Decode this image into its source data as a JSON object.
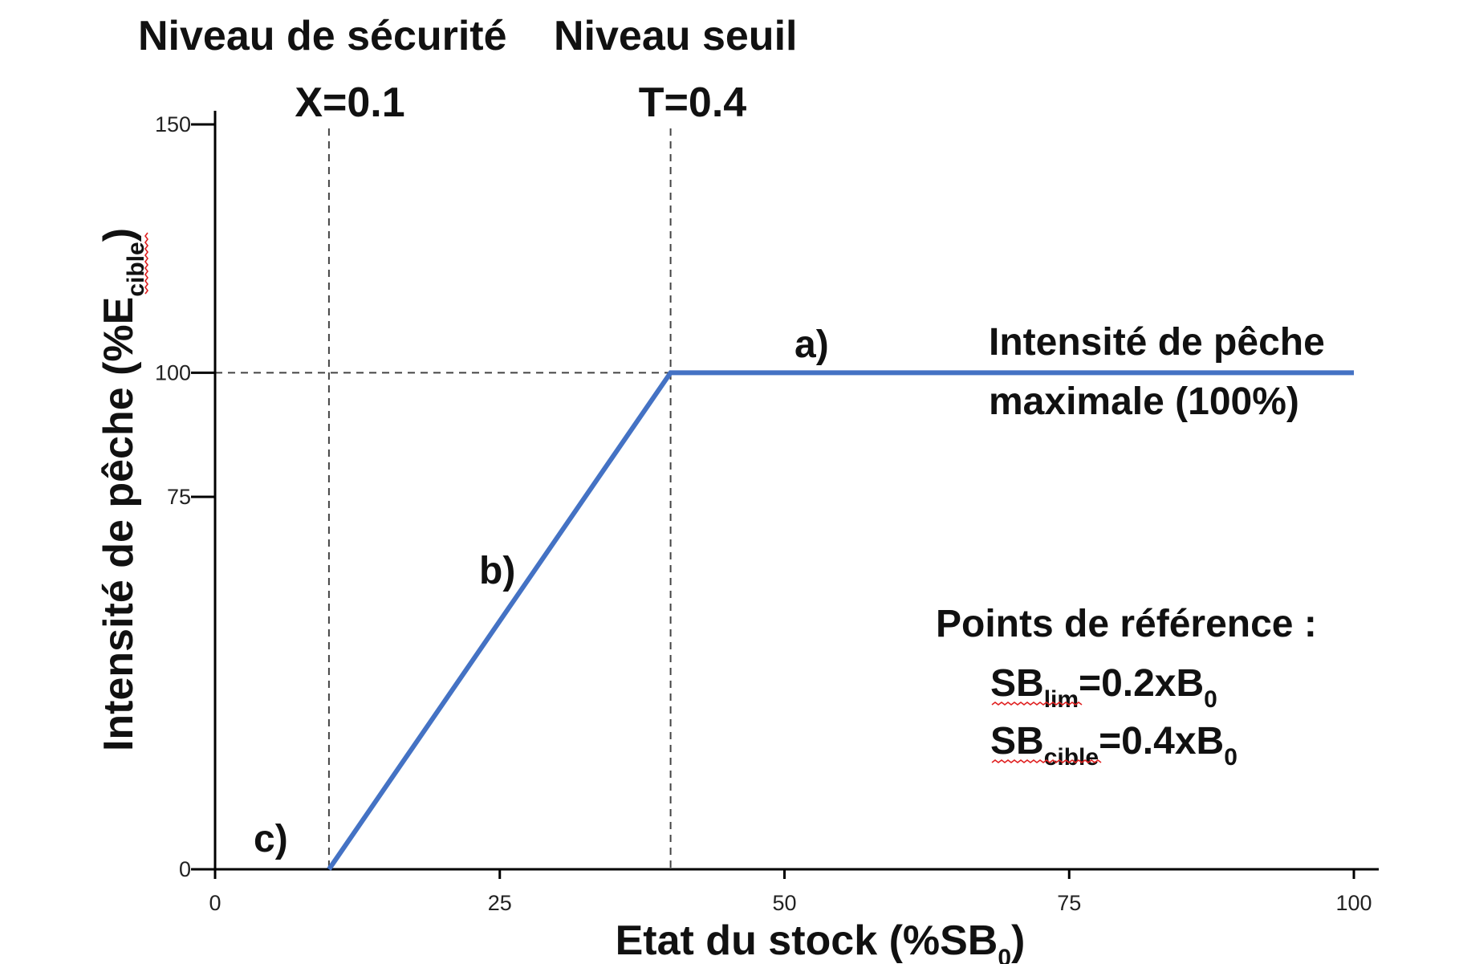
{
  "chart_data": {
    "type": "line",
    "xlabel": {
      "main": "Etat du stock (%SB",
      "sub": "0",
      "close": ")"
    },
    "ylabel": {
      "main": "Intensité de pêche (%E",
      "sub": "cible",
      "close": ")"
    },
    "xlim": [
      0,
      100
    ],
    "ylim": [
      0,
      150
    ],
    "x_ticks": [
      0,
      25,
      50,
      75,
      100
    ],
    "y_ticks": [
      0,
      75,
      100,
      150
    ],
    "series": [
      {
        "x": [
          0,
          10,
          40,
          100
        ],
        "y": [
          0,
          0,
          100,
          100
        ],
        "color": "#4472c4"
      }
    ],
    "ref_lines": {
      "vertical": [
        {
          "x": 10,
          "header": "Niveau de sécurité",
          "label": "X=0.1"
        },
        {
          "x": 40,
          "header": "Niveau seuil",
          "label": "T=0.4"
        }
      ],
      "horizontal": [
        {
          "y": 100
        }
      ]
    },
    "annotations": {
      "segment_a": "a)",
      "segment_b": "b)",
      "segment_c": "c)",
      "max_line1": "Intensité de pêche",
      "max_line2": "maximale (100%)",
      "ref_title": "Points de référence :",
      "ref1": {
        "base": "SB",
        "sub": "lim",
        "value": "=0.2xB",
        "value_sub": "0"
      },
      "ref2": {
        "base": "SB",
        "sub": "cible",
        "value": "=0.4xB",
        "value_sub": "0"
      }
    },
    "colors": {
      "line": "#4472c4",
      "axis": "#000000",
      "reference": "#444444"
    }
  }
}
